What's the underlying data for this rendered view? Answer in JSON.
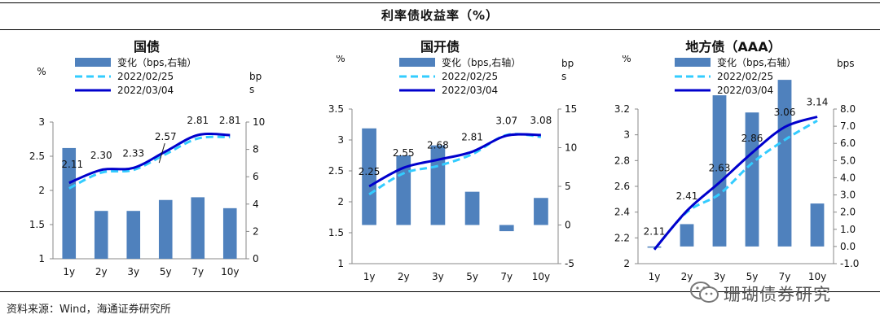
{
  "title": "利率债收益率（%）",
  "source": "资料来源：Wind，海通证券研究所",
  "watermark": "珊瑚债券研究",
  "colors": {
    "bar": "#4f81bd",
    "line_prev": "#33ccff",
    "line_curr": "#0000cc",
    "text": "#111111"
  },
  "chart_data": [
    {
      "type": "bar",
      "title": "国债",
      "categories": [
        "1y",
        "2y",
        "3y",
        "5y",
        "7y",
        "10y"
      ],
      "left_unit": "%",
      "right_unit": "bps",
      "ylim_left": [
        1,
        3
      ],
      "ylim_right": [
        0,
        10
      ],
      "left_ticks": [
        "1",
        "1.5",
        "2",
        "2.5",
        "3"
      ],
      "right_ticks": [
        "0",
        "2",
        "4",
        "6",
        "8",
        "10"
      ],
      "legend": [
        "变化（bps,右轴）",
        "2022/02/25",
        "2022/03/04"
      ],
      "bars_bps": [
        8.1,
        3.5,
        3.5,
        4.3,
        4.5,
        3.7
      ],
      "series": [
        {
          "name": "2022/02/25",
          "values": [
            2.03,
            2.26,
            2.3,
            2.53,
            2.76,
            2.78
          ]
        },
        {
          "name": "2022/03/04",
          "values": [
            2.11,
            2.3,
            2.33,
            2.57,
            2.81,
            2.81
          ]
        }
      ],
      "labels": [
        "2.11",
        "2.30",
        "2.33",
        "2.57",
        "2.81",
        "2.81"
      ]
    },
    {
      "type": "bar",
      "title": "国开债",
      "categories": [
        "1y",
        "2y",
        "3y",
        "5y",
        "7y",
        "10y"
      ],
      "left_unit": "%",
      "right_unit": "bps",
      "ylim_left": [
        1,
        3.5
      ],
      "ylim_right": [
        -5,
        15
      ],
      "left_ticks": [
        "1",
        "1.5",
        "2",
        "2.5",
        "3",
        "3.5"
      ],
      "right_ticks": [
        "-5",
        "0",
        "5",
        "10",
        "15"
      ],
      "legend": [
        "变化（bps,右轴）",
        "2022/02/25",
        "2022/03/04"
      ],
      "bars_bps": [
        12.5,
        9.0,
        10.3,
        4.3,
        -0.8,
        3.5
      ],
      "series": [
        {
          "name": "2022/02/25",
          "values": [
            2.12,
            2.46,
            2.58,
            2.77,
            3.08,
            3.05
          ]
        },
        {
          "name": "2022/03/04",
          "values": [
            2.25,
            2.55,
            2.68,
            2.81,
            3.07,
            3.08
          ]
        }
      ],
      "labels": [
        "2.25",
        "2.55",
        "2.68",
        "2.81",
        "3.07",
        "3.08"
      ]
    },
    {
      "type": "bar",
      "title": "地方债（AAA）",
      "categories": [
        "1y",
        "2y",
        "3y",
        "5y",
        "7y",
        "10y"
      ],
      "left_unit": "%",
      "right_unit": "bps",
      "ylim_left": [
        2,
        3.2
      ],
      "ylim_right": [
        -1,
        8
      ],
      "left_ticks": [
        "2",
        "2.2",
        "2.4",
        "2.6",
        "2.8",
        "3",
        "3.2"
      ],
      "right_ticks": [
        "-1.0",
        "0.0",
        "1.0",
        "2.0",
        "3.0",
        "4.0",
        "5.0",
        "6.0",
        "7.0",
        "8.0"
      ],
      "legend": [
        "变化（bps,右轴）",
        "2022/02/25",
        "2022/03/04"
      ],
      "bars_bps": [
        0.0,
        1.3,
        8.8,
        7.8,
        9.7,
        2.5
      ],
      "series": [
        {
          "name": "2022/02/25",
          "values": [
            2.11,
            2.4,
            2.54,
            2.78,
            2.96,
            3.11
          ]
        },
        {
          "name": "2022/03/04",
          "values": [
            2.11,
            2.41,
            2.63,
            2.86,
            3.06,
            3.14
          ]
        }
      ],
      "labels": [
        "2.11",
        "2.41",
        "2.63",
        "2.86",
        "3.06",
        "3.14"
      ]
    }
  ]
}
